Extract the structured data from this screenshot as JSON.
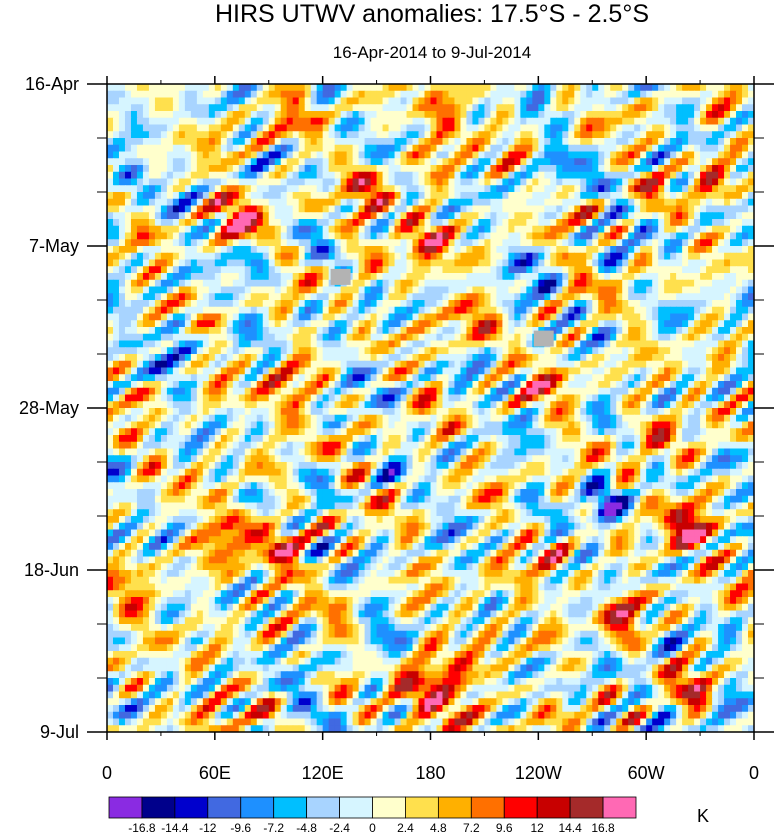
{
  "chart_data": {
    "type": "heatmap",
    "title": "HIRS UTWV anomalies: 17.5°S - 2.5°S",
    "subtitle": "16-Apr-2014 to 9-Jul-2014",
    "xlabel": "",
    "ylabel": "",
    "x_ticks": [
      "0",
      "60E",
      "120E",
      "180",
      "120W",
      "60W",
      "0"
    ],
    "y_ticks": [
      "16-Apr",
      "7-May",
      "28-May",
      "18-Jun",
      "9-Jul"
    ],
    "x_range": [
      0,
      360
    ],
    "y_range": [
      "16-Apr-2014",
      "9-Jul-2014"
    ],
    "units": "K",
    "colorbar_levels": [
      "-16.8",
      "-14.4",
      "-12",
      "-9.6",
      "-7.2",
      "-4.8",
      "-2.4",
      "0",
      "2.4",
      "4.8",
      "7.2",
      "9.6",
      "12",
      "14.4",
      "16.8"
    ],
    "colorbar_colors": [
      "#8a2be2",
      "#00008b",
      "#0000cd",
      "#4169e1",
      "#1e90ff",
      "#00bfff",
      "#a8d4ff",
      "#d6f5ff",
      "#ffffcc",
      "#ffe04d",
      "#ffb000",
      "#ff7000",
      "#ff0000",
      "#c80000",
      "#a52a2a",
      "#ff69b4"
    ],
    "missing_color": "#b3b3b3",
    "hotspots": [
      {
        "lon": 190,
        "day": 5,
        "value": 9
      },
      {
        "lon": 200,
        "day": 30,
        "value": 8
      },
      {
        "lon": 175,
        "day": 20,
        "value": 9
      },
      {
        "lon": 145,
        "day": 15,
        "value": 7
      },
      {
        "lon": 75,
        "day": 18,
        "value": 9
      },
      {
        "lon": 70,
        "day": 58,
        "value": 11
      },
      {
        "lon": 100,
        "day": 62,
        "value": 8
      },
      {
        "lon": 105,
        "day": 40,
        "value": 10
      },
      {
        "lon": 290,
        "day": 70,
        "value": 10
      },
      {
        "lon": 320,
        "day": 58,
        "value": 12
      },
      {
        "lon": 310,
        "day": 45,
        "value": 6
      },
      {
        "lon": 335,
        "day": 12,
        "value": 7
      },
      {
        "lon": 190,
        "day": 80,
        "value": 14
      },
      {
        "lon": 175,
        "day": 77,
        "value": 10
      },
      {
        "lon": 245,
        "day": 38,
        "value": 5
      },
      {
        "lon": 60,
        "day": 82,
        "value": 5
      },
      {
        "lon": 20,
        "day": 67,
        "value": 5
      },
      {
        "lon": 230,
        "day": 65,
        "value": 6
      },
      {
        "lon": 90,
        "day": 5,
        "value": 4
      },
      {
        "lon": 330,
        "day": 78,
        "value": 7
      }
    ],
    "coldspots": [
      {
        "lon": 278,
        "day": 55,
        "value": -12
      },
      {
        "lon": 300,
        "day": 72,
        "value": -9
      },
      {
        "lon": 15,
        "day": 10,
        "value": -8
      },
      {
        "lon": 85,
        "day": 23,
        "value": -7
      },
      {
        "lon": 135,
        "day": 37,
        "value": -7
      },
      {
        "lon": 40,
        "day": 33,
        "value": -8
      },
      {
        "lon": 225,
        "day": 28,
        "value": -8
      },
      {
        "lon": 250,
        "day": 10,
        "value": -7
      },
      {
        "lon": 340,
        "day": 82,
        "value": -8
      },
      {
        "lon": 150,
        "day": 75,
        "value": -6
      },
      {
        "lon": 100,
        "day": 80,
        "value": -6
      }
    ],
    "missing_patches": [
      {
        "lon": 130,
        "day": 25
      },
      {
        "lon": 243,
        "day": 33
      }
    ]
  }
}
